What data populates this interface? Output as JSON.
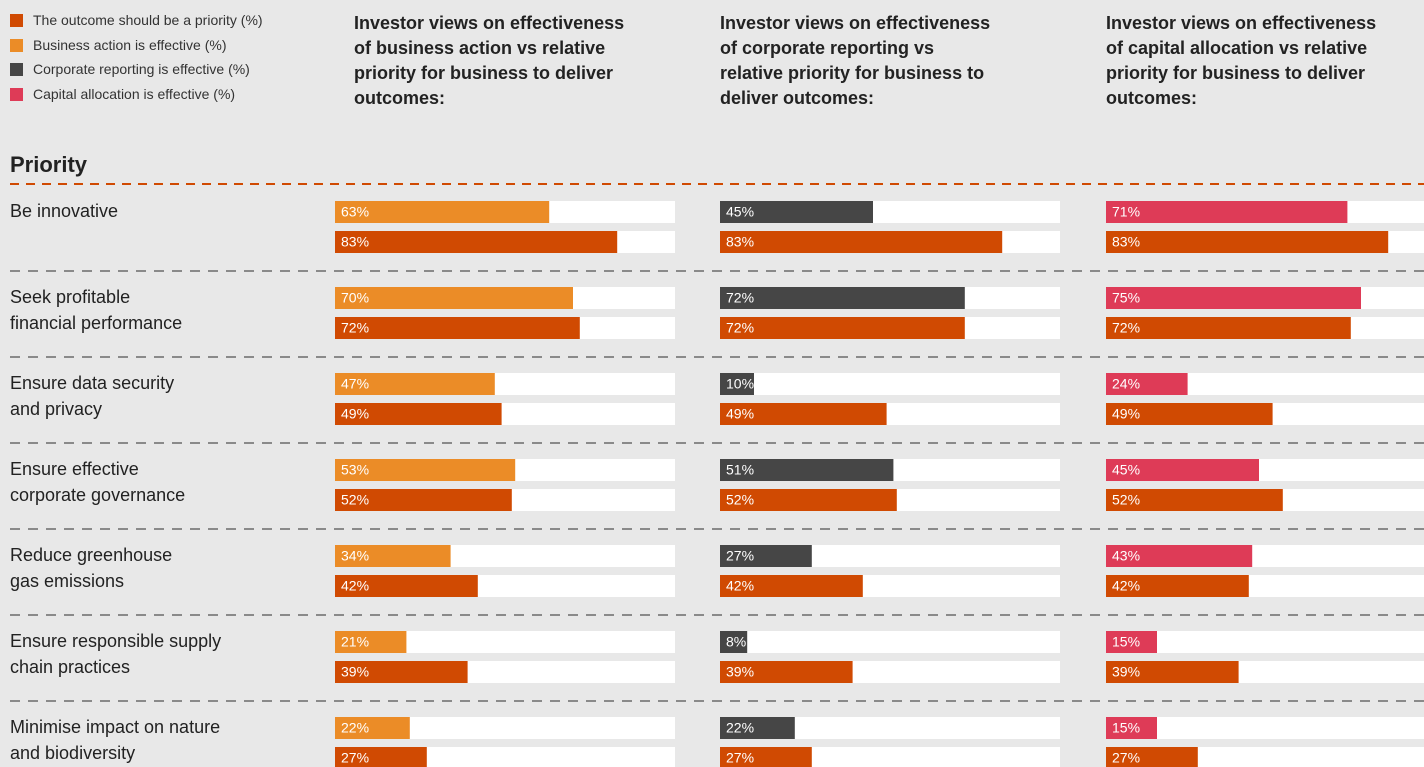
{
  "chart_data": [
    {
      "type": "bar",
      "title": "Investor views on effectiveness\nof business action vs relative\npriority for business to deliver\noutcomes:",
      "ylabel": "Priority",
      "categories": [
        "Be innovative",
        "Seek profitable\nfinancial performance",
        "Ensure data security\nand privacy",
        "Ensure effective\ncorporate governance",
        "Reduce greenhouse\ngas emissions",
        "Ensure responsible supply\nchain practices",
        "Minimise impact on nature\nand biodiversity"
      ],
      "xlim": [
        0,
        100
      ],
      "series": [
        {
          "name": "Business action is effective (%)",
          "color": "#eb8c27",
          "values": [
            63,
            70,
            47,
            53,
            34,
            21,
            22
          ],
          "value_labels": [
            "63%",
            "70%",
            "47%",
            "53%",
            "34%",
            "21%",
            "22%"
          ]
        },
        {
          "name": "The outcome should be a priority (%)",
          "color": "#d04a02",
          "values": [
            83,
            72,
            49,
            52,
            42,
            39,
            27
          ],
          "value_labels": [
            "83%",
            "72%",
            "49%",
            "52%",
            "42%",
            "39%",
            "27%"
          ]
        }
      ]
    },
    {
      "type": "bar",
      "title": "Investor views on effectiveness\nof corporate reporting vs\nrelative priority for business to\ndeliver outcomes:",
      "categories": [
        "Be innovative",
        "Seek profitable\nfinancial performance",
        "Ensure data security\nand privacy",
        "Ensure effective\ncorporate governance",
        "Reduce greenhouse\ngas emissions",
        "Ensure responsible supply\nchain practices",
        "Minimise impact on nature\nand biodiversity"
      ],
      "xlim": [
        0,
        100
      ],
      "series": [
        {
          "name": "Corporate reporting is effective (%)",
          "color": "#464646",
          "values": [
            45,
            72,
            10,
            51,
            27,
            8,
            22
          ],
          "value_labels": [
            "45%",
            "72%",
            "10%",
            "51%",
            "27%",
            "8%",
            "22%"
          ]
        },
        {
          "name": "The outcome should be a priority (%)",
          "color": "#d04a02",
          "values": [
            83,
            72,
            49,
            52,
            42,
            39,
            27
          ],
          "value_labels": [
            "83%",
            "72%",
            "49%",
            "52%",
            "42%",
            "39%",
            "27%"
          ]
        }
      ]
    },
    {
      "type": "bar",
      "title": "Investor views on effectiveness\nof capital allocation vs relative\npriority for business to deliver\noutcomes:",
      "categories": [
        "Be innovative",
        "Seek profitable\nfinancial performance",
        "Ensure data security\nand privacy",
        "Ensure effective\ncorporate governance",
        "Reduce greenhouse\ngas emissions",
        "Ensure responsible supply\nchain practices",
        "Minimise impact on nature\nand biodiversity"
      ],
      "xlim": [
        0,
        100
      ],
      "series": [
        {
          "name": "Capital allocation is effective (%)",
          "color": "#de3b57",
          "values": [
            71,
            75,
            24,
            45,
            43,
            15,
            15
          ],
          "value_labels": [
            "71%",
            "75%",
            "24%",
            "45%",
            "43%",
            "15%",
            "15%"
          ]
        },
        {
          "name": "The outcome should be a priority (%)",
          "color": "#d04a02",
          "values": [
            83,
            72,
            49,
            52,
            42,
            39,
            27
          ],
          "value_labels": [
            "83%",
            "72%",
            "49%",
            "52%",
            "42%",
            "39%",
            "27%"
          ]
        }
      ]
    }
  ]
}
